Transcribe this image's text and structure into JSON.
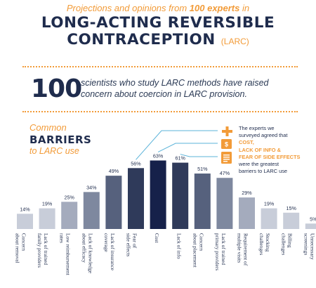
{
  "header": {
    "subtitle_prefix": "Projections and opinions from",
    "subtitle_bold": "100 experts",
    "subtitle_suffix": "in",
    "title_line1": "LONG-ACTING REVERSIBLE",
    "title_line2": "CONTRACEPTION",
    "title_abbrev": "(LARC)"
  },
  "stat": {
    "number": "100",
    "text": "scientists who study LARC methods have raised concern about coercion in LARC provision."
  },
  "chart_heading": {
    "line1": "Common",
    "line2": "BARRIERS",
    "line3": "to LARC use"
  },
  "callout": {
    "line1": "The experts we",
    "line2": "surveyed agreed that",
    "item1": "COST,",
    "item2": "LACK OF INFO &",
    "item3": "FEAR OF SIDE EFFECTS",
    "line3": "were the greatest",
    "line4": "barriers to LARC use",
    "icons": [
      "plus-icon",
      "dollar-icon",
      "document-icon"
    ],
    "accent": "#f29b38",
    "callout_line_color": "#5bb3d9"
  },
  "chart_data": {
    "type": "bar",
    "title": "",
    "xlabel": "",
    "ylabel": "",
    "ylim": [
      0,
      70
    ],
    "grid": false,
    "categories": [
      [
        "Concern",
        "about removal"
      ],
      [
        "Lack of trained",
        "family providers"
      ],
      [
        "Low reimbursement",
        "rates"
      ],
      [
        "Lack of knowledge",
        "about efficacy"
      ],
      [
        "Lack of insurance",
        "coverage"
      ],
      [
        "Fear of",
        "side effects"
      ],
      [
        "Cost"
      ],
      [
        "Lack of info"
      ],
      [
        "Concern",
        "about placement"
      ],
      [
        "Lack of trained",
        "primary providers"
      ],
      [
        "Requirement of",
        "multiple visits"
      ],
      [
        "Stocking",
        "challenges"
      ],
      [
        "Billing",
        "challenges"
      ],
      [
        "Unnecessary",
        "screenings"
      ]
    ],
    "values": [
      14,
      19,
      25,
      34,
      49,
      56,
      63,
      61,
      51,
      47,
      29,
      19,
      15,
      5
    ],
    "value_labels": [
      "14%",
      "19%",
      "25%",
      "34%",
      "49%",
      "56%",
      "63%",
      "61%",
      "51%",
      "47%",
      "29%",
      "19%",
      "15%",
      "5%"
    ],
    "colors": [
      "#c8cdd9",
      "#c8cdd9",
      "#a4abbd",
      "#7e889f",
      "#56617d",
      "#2f3a5a",
      "#16214a",
      "#2f3a5a",
      "#56617d",
      "#7e889f",
      "#a4abbd",
      "#c8cdd9",
      "#c8cdd9",
      "#c8cdd9"
    ]
  }
}
